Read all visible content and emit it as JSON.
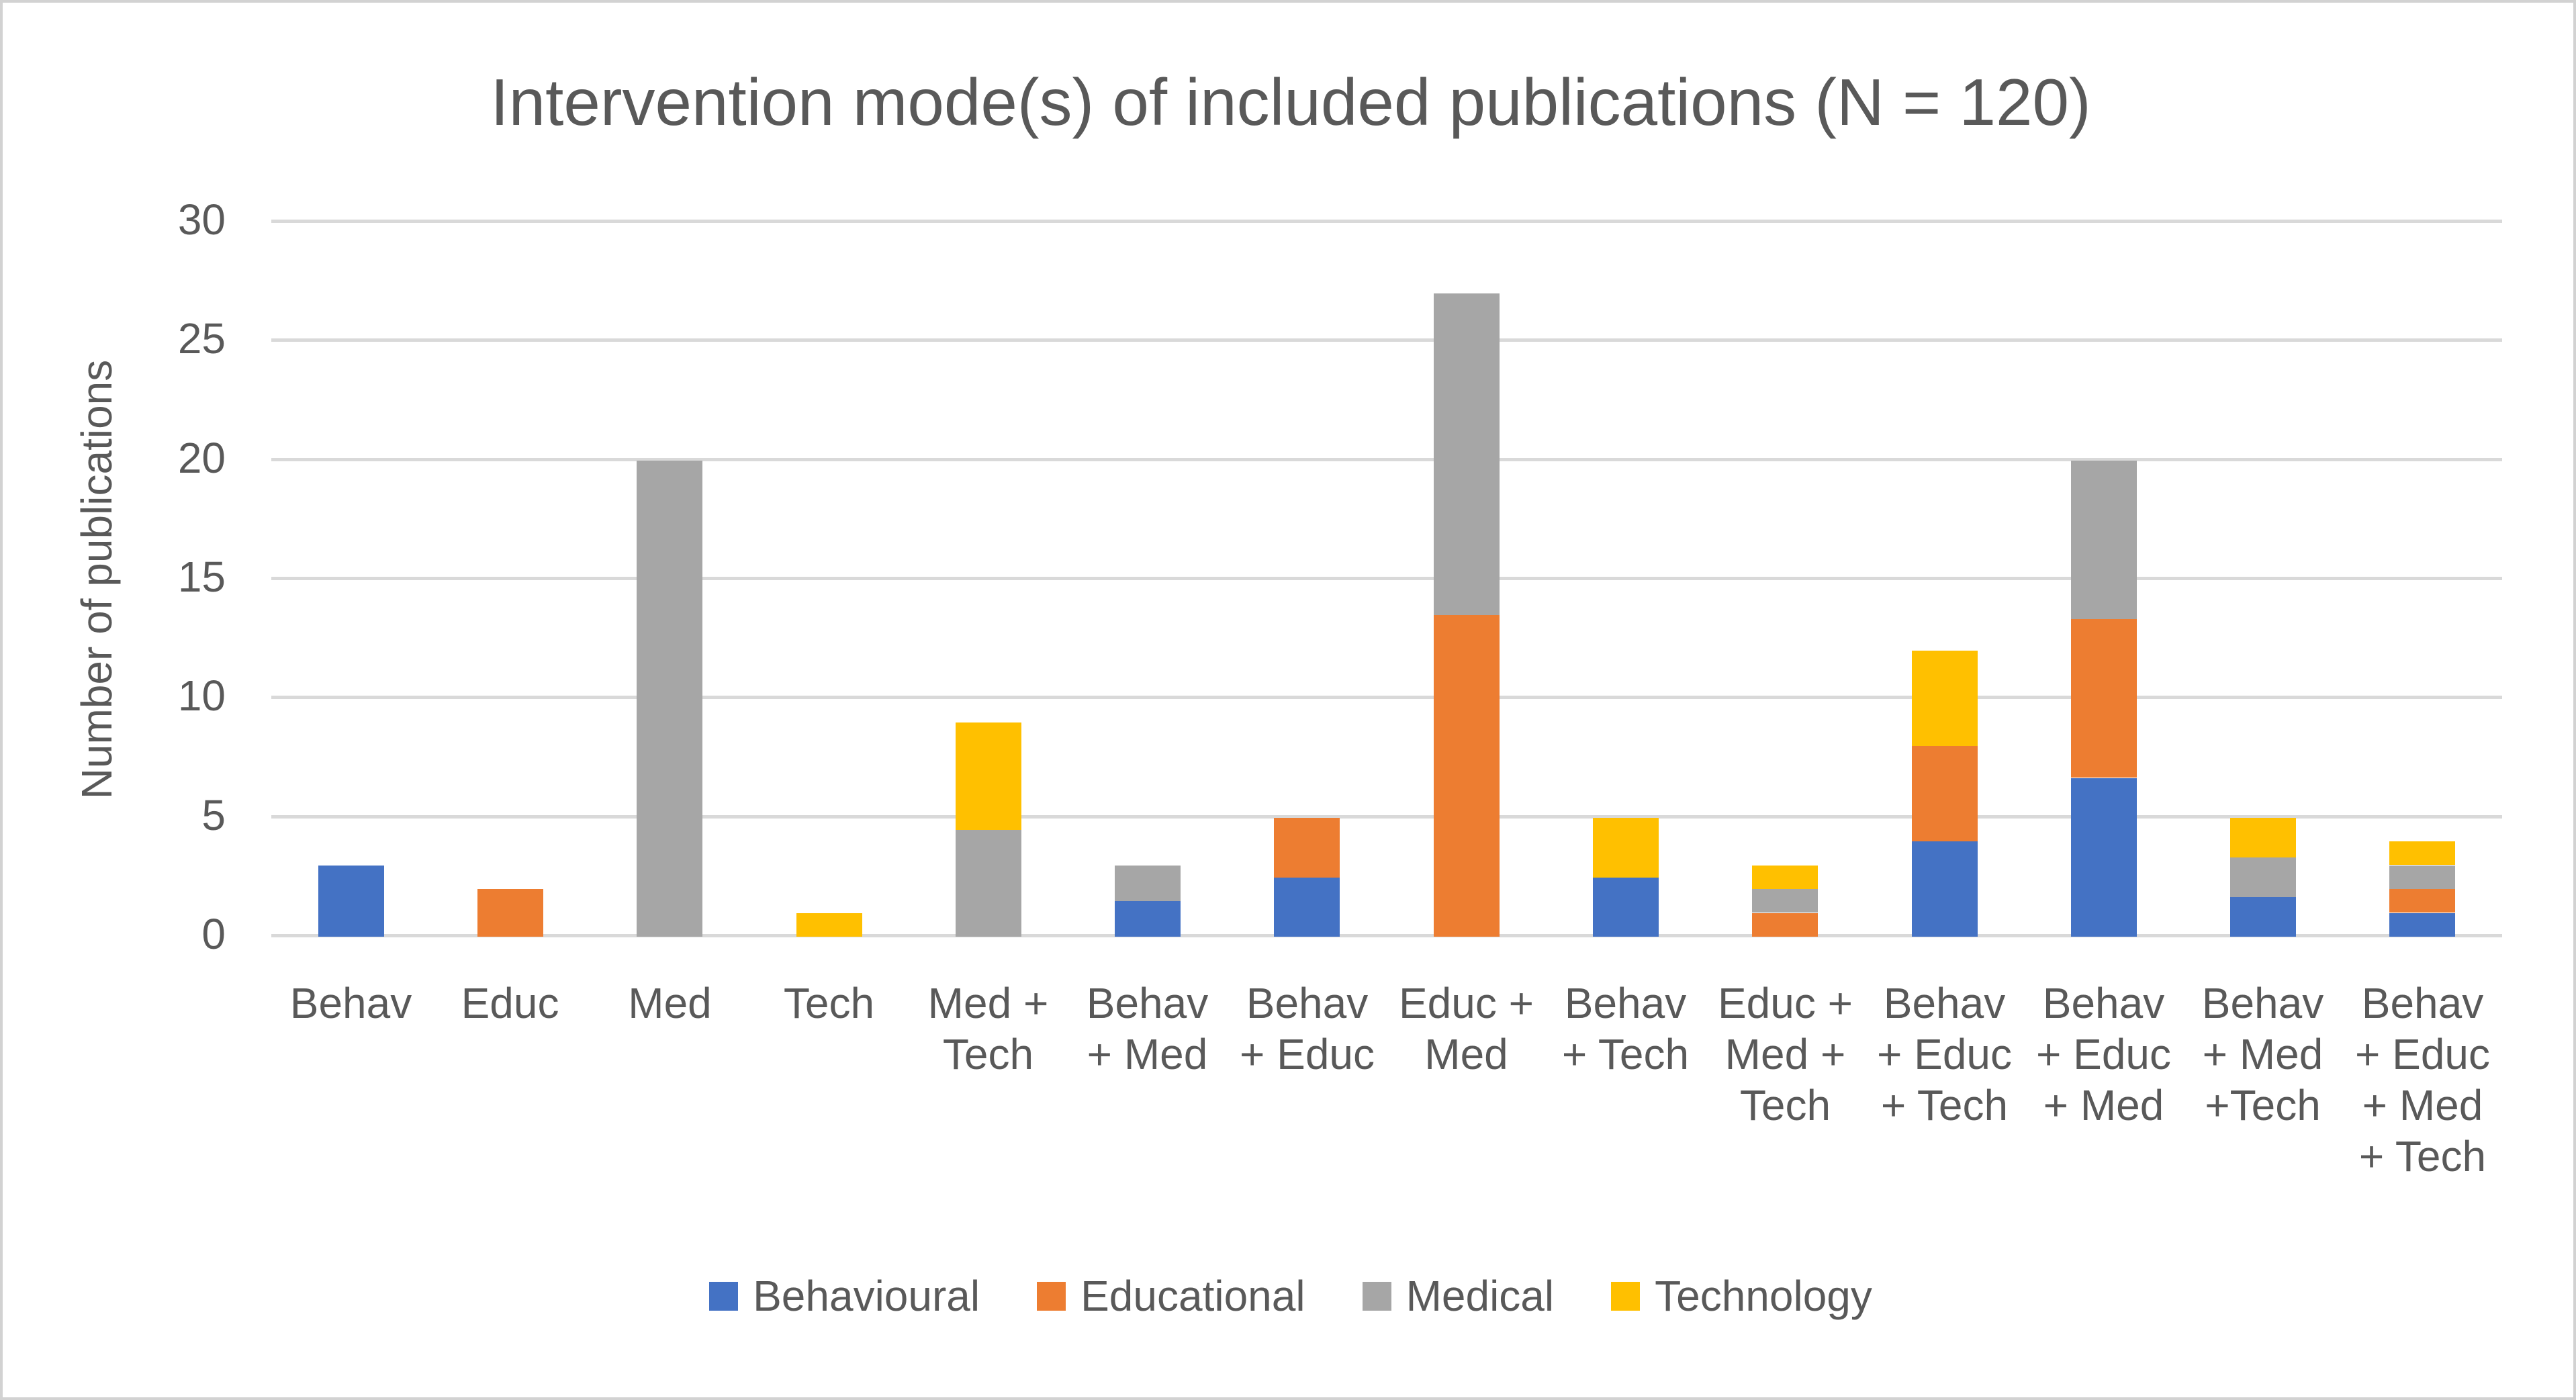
{
  "title": "Intervention mode(s) of included publications (N = 120)",
  "y_axis": {
    "label": "Number of publications",
    "min": 0,
    "max": 30,
    "tick_step": 5,
    "ticks": [
      "0",
      "5",
      "10",
      "15",
      "20",
      "25",
      "30"
    ]
  },
  "legend": [
    {
      "name": "Behavioural",
      "color": "#4472C4"
    },
    {
      "name": "Educational",
      "color": "#ED7D31"
    },
    {
      "name": "Medical",
      "color": "#A6A6A6"
    },
    {
      "name": "Technology",
      "color": "#FFC000"
    }
  ],
  "colors": {
    "grid": "#d9d9d9",
    "text": "#595959",
    "border": "#d2d2d2",
    "background": "#ffffff"
  },
  "chart_data": {
    "type": "bar",
    "stacked": true,
    "title": "Intervention mode(s) of included publications (N = 120)",
    "xlabel": "",
    "ylabel": "Number of publications",
    "ylim": [
      0,
      30
    ],
    "grid": true,
    "legend_position": "bottom",
    "categories": [
      "Behav",
      "Educ",
      "Med",
      "Tech",
      "Med + Tech",
      "Behav + Med",
      "Behav + Educ",
      "Educ + Med",
      "Behav + Tech",
      "Educ + Med + Tech",
      "Behav + Educ + Tech",
      "Behav + Educ + Med",
      "Behav + Med +Tech",
      "Behav + Educ + Med + Tech"
    ],
    "category_label_lines": [
      [
        "Behav"
      ],
      [
        "Educ"
      ],
      [
        "Med"
      ],
      [
        "Tech"
      ],
      [
        "Med +",
        "Tech"
      ],
      [
        "Behav",
        "+ Med"
      ],
      [
        "Behav",
        "+ Educ"
      ],
      [
        "Educ +",
        "Med"
      ],
      [
        "Behav",
        "+ Tech"
      ],
      [
        "Educ +",
        "Med +",
        "Tech"
      ],
      [
        "Behav",
        "+ Educ",
        "+ Tech"
      ],
      [
        "Behav",
        "+ Educ",
        "+ Med"
      ],
      [
        "Behav",
        "+ Med",
        "+Tech"
      ],
      [
        "Behav",
        "+ Educ",
        "+ Med",
        "+ Tech"
      ]
    ],
    "series": [
      {
        "name": "Behavioural",
        "color": "#4472C4",
        "values": [
          3,
          0,
          0,
          0,
          0,
          1.5,
          2.5,
          0,
          2.5,
          0,
          4,
          6.667,
          1.667,
          1
        ]
      },
      {
        "name": "Educational",
        "color": "#ED7D31",
        "values": [
          0,
          2,
          0,
          0,
          0,
          0,
          2.5,
          13.5,
          0,
          1,
          4,
          6.667,
          0,
          1
        ]
      },
      {
        "name": "Medical",
        "color": "#A6A6A6",
        "values": [
          0,
          0,
          20,
          0,
          4.5,
          1.5,
          0,
          13.5,
          0,
          1,
          0,
          6.666,
          1.667,
          1
        ]
      },
      {
        "name": "Technology",
        "color": "#FFC000",
        "values": [
          0,
          0,
          0,
          1,
          4.5,
          0,
          0,
          0,
          2.5,
          1,
          4,
          0,
          1.666,
          1
        ]
      }
    ],
    "category_totals": [
      3,
      2,
      20,
      1,
      9,
      3,
      5,
      27,
      5,
      3,
      12,
      20,
      5,
      4
    ]
  }
}
